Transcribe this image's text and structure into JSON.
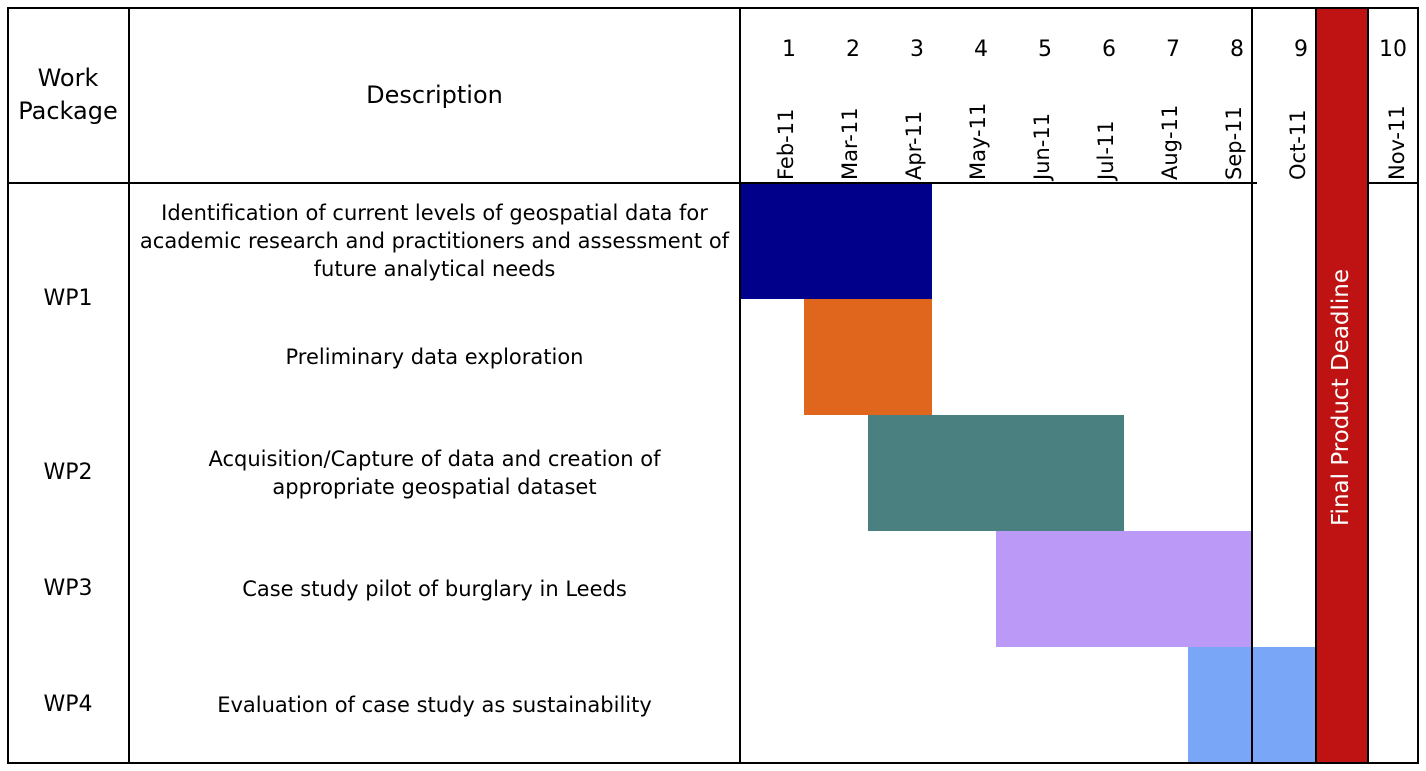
{
  "header": {
    "work_package": "Work\nPackage",
    "description": "Description"
  },
  "months": [
    {
      "num": "1",
      "label": "Feb-11"
    },
    {
      "num": "2",
      "label": "Mar-11"
    },
    {
      "num": "3",
      "label": "Apr-11"
    },
    {
      "num": "4",
      "label": "May-11"
    },
    {
      "num": "5",
      "label": "Jun-11"
    },
    {
      "num": "6",
      "label": "Jul-11"
    },
    {
      "num": "7",
      "label": "Aug-11"
    },
    {
      "num": "8",
      "label": "Sep-11"
    },
    {
      "num": "9",
      "label": "Oct-11"
    },
    {
      "num": "10",
      "label": "Nov-11"
    }
  ],
  "work_packages": [
    "WP1",
    "WP2",
    "WP3",
    "WP4"
  ],
  "tasks": [
    {
      "description": "Identification of current levels of geospatial data for academic research and practitioners and assessment of future analytical needs",
      "start": 1,
      "end": 3,
      "color": "#00008b"
    },
    {
      "description": "Preliminary data exploration",
      "start": 2,
      "end": 3,
      "color": "#e0661e"
    },
    {
      "description": "Acquisition/Capture of data and creation of appropriate geospatial dataset",
      "start": 3,
      "end": 6,
      "color": "#4a807f"
    },
    {
      "description": "Case study pilot of burglary in Leeds",
      "start": 5,
      "end": 8,
      "color": "#bb99f7"
    },
    {
      "description": "Evaluation of case study as sustainability",
      "start": 8,
      "end": 9,
      "color": "#7aa6f8"
    }
  ],
  "deadline": {
    "label": "Final Product Deadline",
    "color": "#bf1212"
  }
}
